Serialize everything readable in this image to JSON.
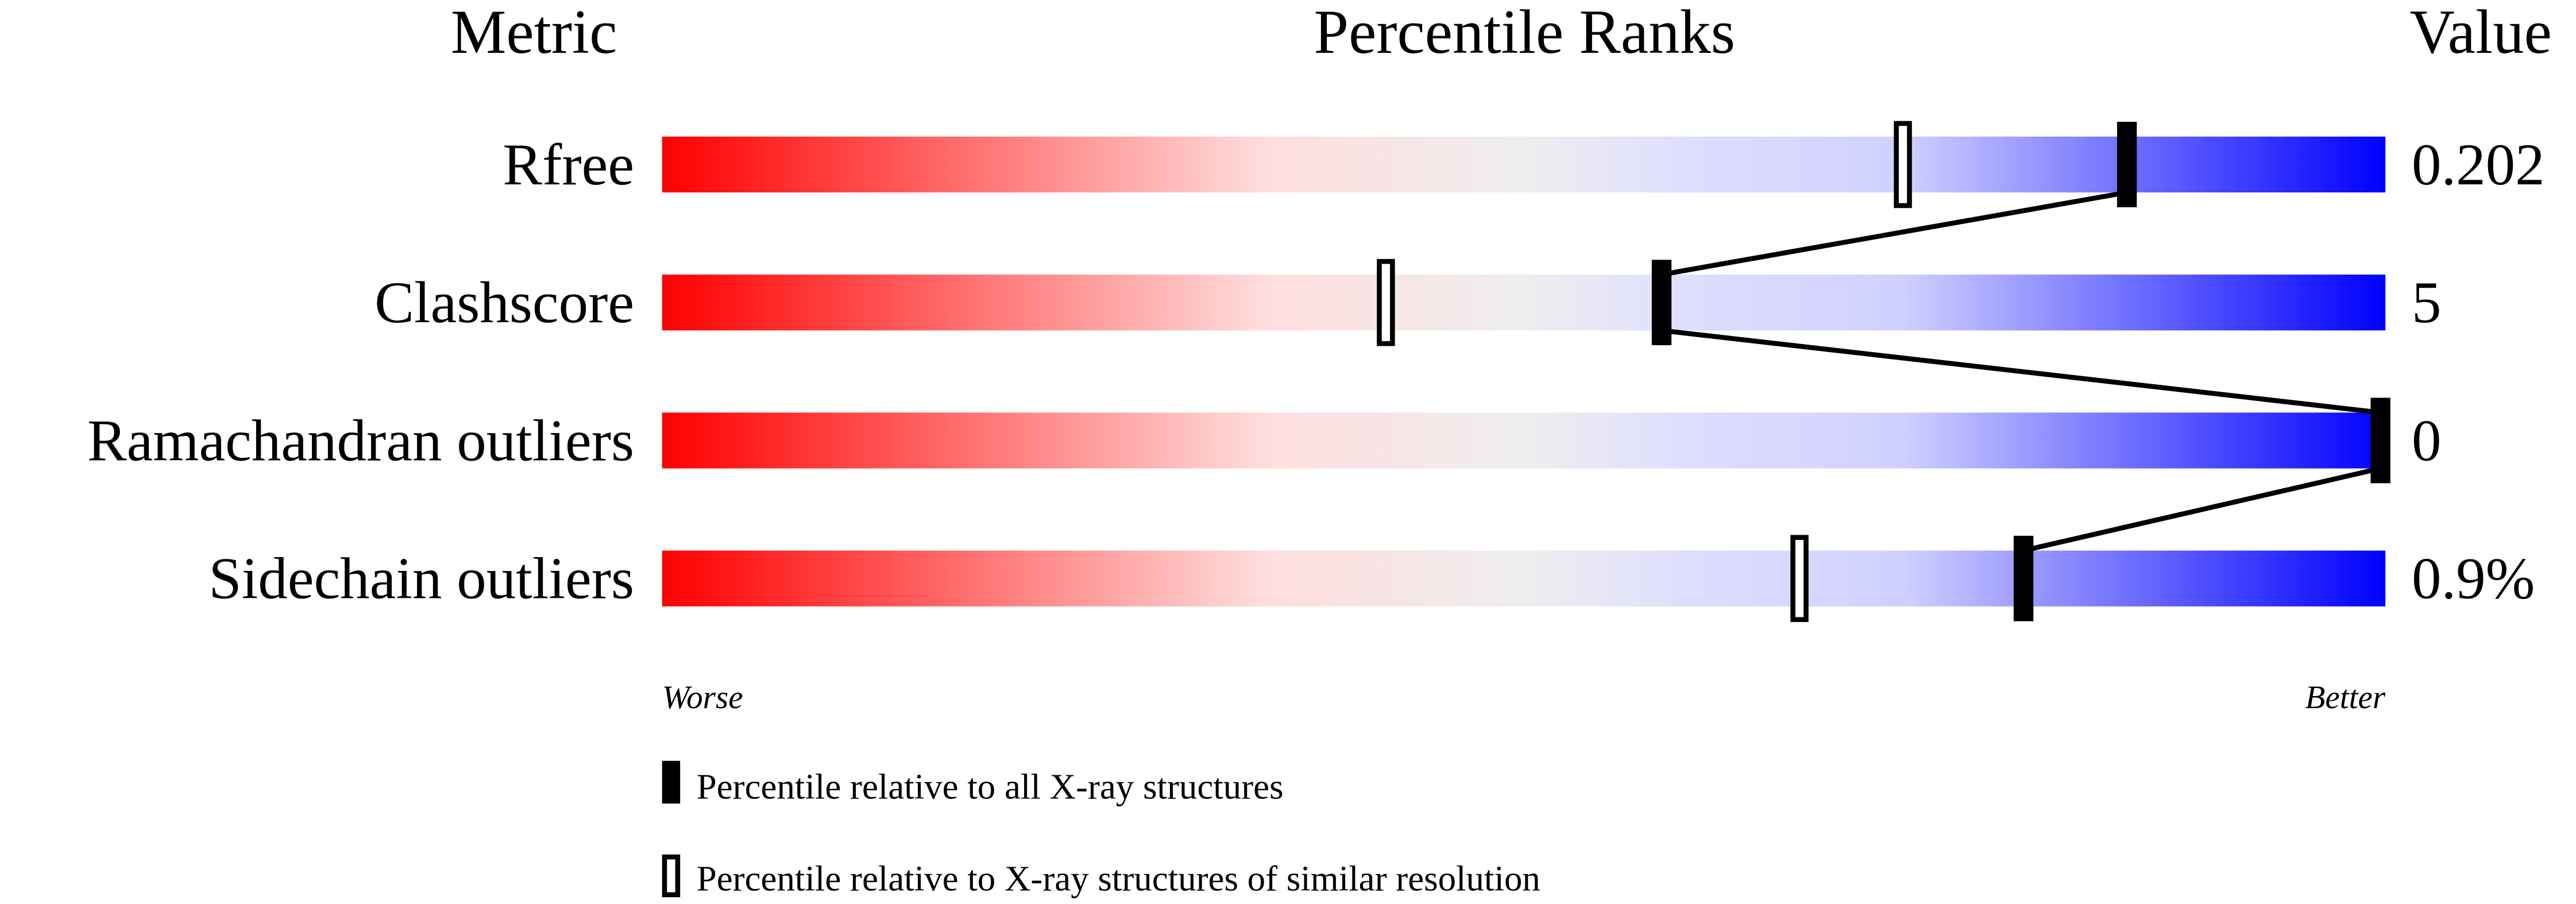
{
  "chart_data": {
    "type": "percentile-bar",
    "headers": {
      "metric": "Metric",
      "ranks": "Percentile Ranks",
      "value": "Value"
    },
    "xlim": [
      0,
      100
    ],
    "axis_labels": {
      "left": "Worse",
      "right": "Better"
    },
    "gradient_colors": [
      "#ff0000",
      "#ffdddd",
      "#eeeeee",
      "#ddddff",
      "#d0d0ff",
      "#0000ff"
    ],
    "metrics": [
      {
        "name": "Rfree",
        "value": "0.202",
        "percentile_all": 85,
        "percentile_similar": 72
      },
      {
        "name": "Clashscore",
        "value": "5",
        "percentile_all": 58,
        "percentile_similar": 42
      },
      {
        "name": "Ramachandran outliers",
        "value": "0",
        "percentile_all": 100,
        "percentile_similar": 100
      },
      {
        "name": "Sidechain outliers",
        "value": "0.9%",
        "percentile_all": 79,
        "percentile_similar": 66
      }
    ],
    "legend": [
      {
        "marker": "filled",
        "label": "Percentile relative to all X-ray structures"
      },
      {
        "marker": "open",
        "label": "Percentile relative to X-ray structures of similar resolution"
      }
    ]
  }
}
